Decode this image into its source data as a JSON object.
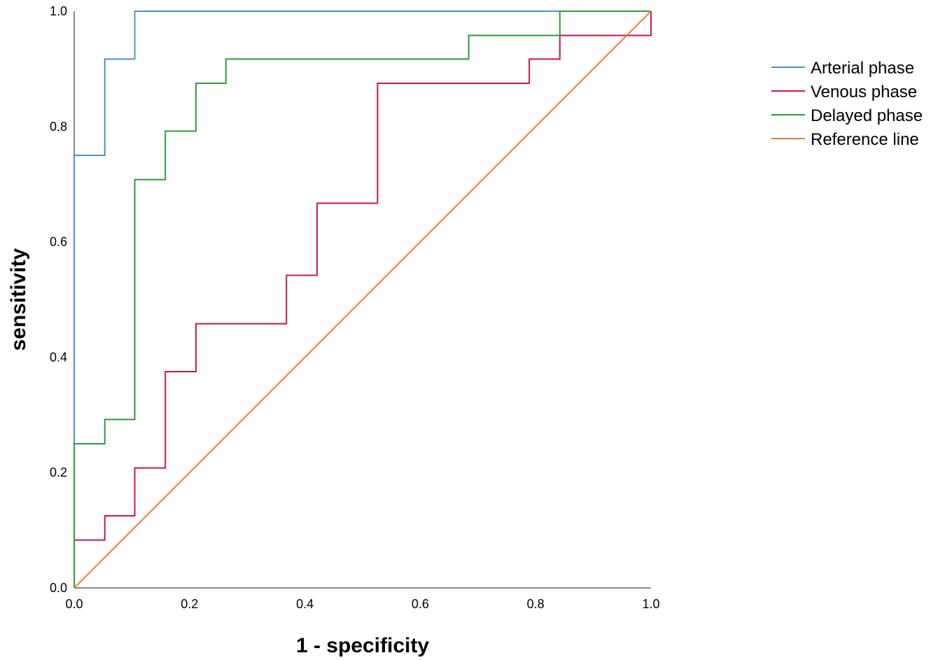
{
  "chart_data": {
    "type": "line",
    "title": "",
    "xlabel": "1 - specificity",
    "ylabel": "sensitivity",
    "xlim": [
      0,
      1
    ],
    "ylim": [
      0,
      1
    ],
    "x_ticks": [
      "0.0",
      "0.2",
      "0.4",
      "0.6",
      "0.8",
      "1.0"
    ],
    "y_ticks": [
      "0.0",
      "0.2",
      "0.4",
      "0.6",
      "0.8",
      "1.0"
    ],
    "grid": false,
    "legend_position": "right",
    "step": true,
    "series": [
      {
        "name": "Arterial phase",
        "color": "#4a90d9",
        "points": [
          [
            0,
            0
          ],
          [
            0,
            0.75
          ],
          [
            0.053,
            0.75
          ],
          [
            0.053,
            0.917
          ],
          [
            0.105,
            0.917
          ],
          [
            0.105,
            1.0
          ],
          [
            1.0,
            1.0
          ]
        ]
      },
      {
        "name": "Venous phase",
        "color": "#d0154a",
        "points": [
          [
            0,
            0
          ],
          [
            0,
            0.083
          ],
          [
            0.053,
            0.083
          ],
          [
            0.053,
            0.125
          ],
          [
            0.105,
            0.125
          ],
          [
            0.105,
            0.208
          ],
          [
            0.158,
            0.208
          ],
          [
            0.158,
            0.375
          ],
          [
            0.211,
            0.375
          ],
          [
            0.211,
            0.458
          ],
          [
            0.368,
            0.458
          ],
          [
            0.368,
            0.542
          ],
          [
            0.421,
            0.542
          ],
          [
            0.421,
            0.667
          ],
          [
            0.526,
            0.667
          ],
          [
            0.526,
            0.875
          ],
          [
            0.789,
            0.875
          ],
          [
            0.789,
            0.917
          ],
          [
            0.842,
            0.917
          ],
          [
            0.842,
            0.958
          ],
          [
            1.0,
            0.958
          ],
          [
            1.0,
            1.0
          ]
        ]
      },
      {
        "name": "Delayed phase",
        "color": "#2e9a3a",
        "points": [
          [
            0,
            0
          ],
          [
            0,
            0.25
          ],
          [
            0.053,
            0.25
          ],
          [
            0.053,
            0.292
          ],
          [
            0.105,
            0.292
          ],
          [
            0.105,
            0.708
          ],
          [
            0.158,
            0.708
          ],
          [
            0.158,
            0.792
          ],
          [
            0.211,
            0.792
          ],
          [
            0.211,
            0.875
          ],
          [
            0.263,
            0.875
          ],
          [
            0.263,
            0.917
          ],
          [
            0.684,
            0.917
          ],
          [
            0.684,
            0.958
          ],
          [
            0.842,
            0.958
          ],
          [
            0.842,
            1.0
          ],
          [
            1.0,
            1.0
          ]
        ]
      },
      {
        "name": "Reference line",
        "color": "#f07a3a",
        "points": [
          [
            0,
            0
          ],
          [
            1,
            1
          ]
        ]
      }
    ]
  }
}
